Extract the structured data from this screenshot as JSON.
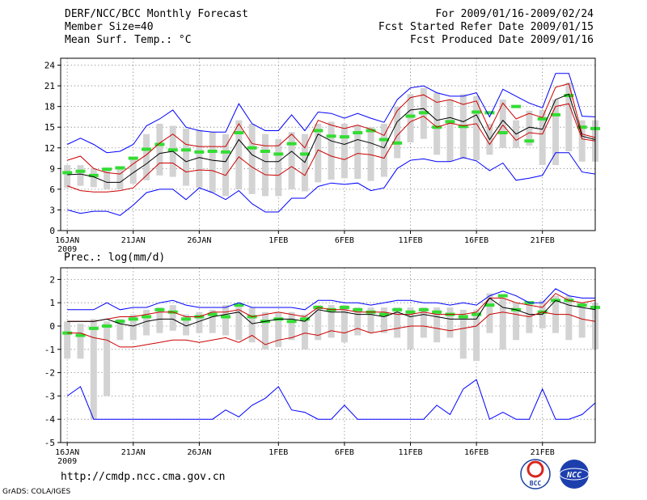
{
  "header": {
    "title": "DERF/NCC/BCC Monthly Forecast",
    "member": "Member Size=40",
    "variable": "Mean Surf. Temp.: °C",
    "period": "For 2009/01/16-2009/02/24",
    "started": "Fcst Started Refer Date 2009/01/15",
    "produced": "Fcst Produced Date 2009/01/16"
  },
  "footer": {
    "url": "http://cmdp.ncc.cma.gov.cn",
    "credit": "GrADS: COLA/IGES"
  },
  "logos": {
    "bcc": "BCC",
    "ncc": "NCC"
  },
  "colors": {
    "envelope": "#0000ff",
    "spread": "#cc0000",
    "mean": "#000000",
    "bar": "#d3d3d3",
    "marker": "#33dd33"
  },
  "chart_data": [
    {
      "type": "line",
      "title": "Mean Surf. Temp.: °C",
      "x_start_label": "16JAN 2009",
      "x_ticks": [
        {
          "day": 1,
          "label": "16JAN",
          "sublabel": "2009"
        },
        {
          "day": 6,
          "label": "21JAN"
        },
        {
          "day": 11,
          "label": "26JAN"
        },
        {
          "day": 17,
          "label": "1FEB"
        },
        {
          "day": 22,
          "label": "6FEB"
        },
        {
          "day": 27,
          "label": "11FEB"
        },
        {
          "day": 32,
          "label": "16FEB"
        },
        {
          "day": 37,
          "label": "21FEB"
        }
      ],
      "xlim": [
        0.5,
        41
      ],
      "ylim": [
        0,
        25
      ],
      "yticks": [
        0,
        3,
        6,
        9,
        12,
        15,
        18,
        21,
        24
      ],
      "series": [
        {
          "name": "max",
          "values": [
            12.5,
            13.4,
            12.5,
            11.3,
            11.5,
            12.5,
            15.2,
            16.2,
            17.5,
            15.0,
            14.5,
            14.3,
            14.3,
            18.4,
            15.5,
            14.5,
            14.5,
            16.8,
            14.5,
            17.2,
            17.0,
            16.3,
            17.0,
            16.3,
            15.7,
            19.0,
            20.7,
            21.0,
            20.0,
            19.5,
            19.5,
            20.0,
            16.5,
            20.5,
            19.5,
            18.5,
            17.8,
            22.8,
            22.8,
            16.6,
            16.5
          ]
        },
        {
          "name": "upper",
          "values": [
            10.2,
            10.8,
            9.0,
            8.4,
            8.2,
            9.7,
            11.0,
            12.7,
            14.0,
            12.5,
            12.2,
            12.2,
            12.2,
            15.5,
            12.6,
            12.3,
            12.3,
            14.0,
            12.0,
            16.0,
            15.3,
            14.8,
            15.3,
            14.7,
            13.8,
            17.4,
            19.3,
            19.7,
            18.6,
            19.0,
            18.3,
            18.8,
            14.6,
            18.5,
            16.2,
            17.0,
            16.4,
            20.8,
            21.3,
            14.0,
            13.5
          ]
        },
        {
          "name": "mean",
          "values": [
            8.1,
            8.2,
            7.8,
            7.0,
            7.0,
            8.4,
            9.7,
            11.2,
            11.5,
            10.0,
            10.6,
            10.2,
            10.0,
            13.2,
            11.0,
            10.0,
            10.0,
            11.5,
            9.9,
            14.0,
            13.0,
            12.5,
            13.2,
            12.7,
            12.0,
            15.8,
            17.5,
            17.7,
            16.0,
            16.4,
            15.8,
            16.8,
            13.2,
            16.0,
            14.0,
            15.0,
            14.7,
            19.0,
            19.8,
            13.7,
            13.2
          ]
        },
        {
          "name": "lower",
          "values": [
            6.5,
            5.8,
            5.6,
            5.6,
            5.8,
            6.2,
            8.0,
            9.8,
            9.8,
            8.5,
            8.8,
            8.7,
            8.0,
            10.7,
            9.2,
            8.1,
            8.0,
            9.3,
            8.0,
            11.7,
            10.8,
            10.3,
            11.2,
            11.0,
            10.5,
            13.8,
            15.8,
            16.6,
            15.0,
            15.6,
            15.2,
            15.5,
            12.5,
            15.3,
            13.1,
            14.2,
            14.0,
            18.0,
            18.4,
            13.3,
            13.0
          ]
        },
        {
          "name": "min",
          "values": [
            3.0,
            2.5,
            2.8,
            2.8,
            2.2,
            3.7,
            5.5,
            6.0,
            6.0,
            4.5,
            6.2,
            5.5,
            4.5,
            5.8,
            3.9,
            2.7,
            2.7,
            4.7,
            4.7,
            6.4,
            6.9,
            6.7,
            6.9,
            5.8,
            6.2,
            9.0,
            10.2,
            10.4,
            10.0,
            10.0,
            10.6,
            10.1,
            8.7,
            9.8,
            7.3,
            7.6,
            8.0,
            11.3,
            11.3,
            8.5,
            8.2
          ]
        }
      ],
      "bars": [
        {
          "low": 6.2,
          "high": 9.5
        },
        {
          "low": 6.5,
          "high": 9.5
        },
        {
          "low": 6.3,
          "high": 9.0
        },
        {
          "low": 6.0,
          "high": 8.7
        },
        {
          "low": 6.0,
          "high": 9.3
        },
        {
          "low": 6.8,
          "high": 10.5
        },
        {
          "low": 7.3,
          "high": 14.0
        },
        {
          "low": 8.0,
          "high": 15.5
        },
        {
          "low": 7.8,
          "high": 15.2
        },
        {
          "low": 6.5,
          "high": 14.8
        },
        {
          "low": 6.2,
          "high": 14.6
        },
        {
          "low": 5.5,
          "high": 14.3
        },
        {
          "low": 5.0,
          "high": 14.0
        },
        {
          "low": 6.0,
          "high": 16.0
        },
        {
          "low": 5.3,
          "high": 15.5
        },
        {
          "low": 5.0,
          "high": 14.0
        },
        {
          "low": 5.0,
          "high": 13.3
        },
        {
          "low": 6.0,
          "high": 14.3
        },
        {
          "low": 5.7,
          "high": 14.0
        },
        {
          "low": 7.0,
          "high": 15.5
        },
        {
          "low": 7.4,
          "high": 15.8
        },
        {
          "low": 7.6,
          "high": 15.5
        },
        {
          "low": 7.5,
          "high": 15.3
        },
        {
          "low": 7.2,
          "high": 15.0
        },
        {
          "low": 7.8,
          "high": 15.5
        },
        {
          "low": 10.5,
          "high": 18.0
        },
        {
          "low": 12.8,
          "high": 19.8
        },
        {
          "low": 13.3,
          "high": 20.7
        },
        {
          "low": 11.0,
          "high": 20.0
        },
        {
          "low": 10.0,
          "high": 19.0
        },
        {
          "low": 10.4,
          "high": 19.8
        },
        {
          "low": 10.2,
          "high": 19.5
        },
        {
          "low": 11.0,
          "high": 15.5
        },
        {
          "low": 12.0,
          "high": 19.0
        },
        {
          "low": 12.0,
          "high": 16.0
        },
        {
          "low": 12.3,
          "high": 17.4
        },
        {
          "low": 9.5,
          "high": 17.5
        },
        {
          "low": 9.5,
          "high": 19.0
        },
        {
          "low": 11.5,
          "high": 21.5
        },
        {
          "low": 10.0,
          "high": 16.0
        },
        {
          "low": 10.0,
          "high": 16.0
        }
      ],
      "markers": [
        8.4,
        8.6,
        8.0,
        8.9,
        9.1,
        10.5,
        11.8,
        12.5,
        11.7,
        11.7,
        11.4,
        11.5,
        11.4,
        14.2,
        12.0,
        11.5,
        11.1,
        12.6,
        11.1,
        14.5,
        13.7,
        13.6,
        14.2,
        14.5,
        13.2,
        12.7,
        16.6,
        17.1,
        15.0,
        15.8,
        15.1,
        17.2,
        17.1,
        14.2,
        18.0,
        13.0,
        16.2,
        16.8,
        19.6,
        15.0,
        14.8
      ]
    },
    {
      "type": "line",
      "title": "Prec.: log(mm/d)",
      "x_ticks": [
        {
          "day": 1,
          "label": "16JAN",
          "sublabel": "2009"
        },
        {
          "day": 6,
          "label": "21JAN"
        },
        {
          "day": 11,
          "label": "26JAN"
        },
        {
          "day": 17,
          "label": "1FEB"
        },
        {
          "day": 22,
          "label": "6FEB"
        },
        {
          "day": 27,
          "label": "11FEB"
        },
        {
          "day": 32,
          "label": "16FEB"
        },
        {
          "day": 37,
          "label": "21FEB"
        }
      ],
      "xlim": [
        0.5,
        41
      ],
      "ylim": [
        -5,
        2.5
      ],
      "yticks": [
        -5,
        -4,
        -3,
        -2,
        -1,
        0,
        1,
        2
      ],
      "series": [
        {
          "name": "max",
          "values": [
            0.7,
            0.7,
            0.7,
            1.0,
            0.7,
            0.8,
            0.8,
            1.0,
            1.1,
            0.9,
            0.8,
            0.8,
            0.8,
            1.0,
            0.8,
            0.8,
            0.8,
            0.8,
            0.7,
            1.1,
            1.1,
            1.0,
            1.0,
            0.9,
            1.0,
            1.1,
            1.1,
            1.0,
            1.0,
            0.9,
            1.0,
            0.9,
            1.3,
            1.5,
            1.3,
            1.0,
            1.0,
            1.6,
            1.3,
            1.2,
            1.2
          ]
        },
        {
          "name": "upper",
          "values": [
            0.2,
            0.2,
            0.2,
            0.3,
            0.4,
            0.4,
            0.5,
            0.6,
            0.6,
            0.4,
            0.4,
            0.6,
            0.6,
            0.7,
            0.4,
            0.5,
            0.6,
            0.5,
            0.4,
            0.8,
            0.7,
            0.7,
            0.6,
            0.6,
            0.6,
            0.5,
            0.5,
            0.6,
            0.5,
            0.5,
            0.5,
            0.6,
            1.2,
            1.2,
            1.0,
            0.9,
            0.8,
            1.4,
            1.1,
            1.0,
            1.1
          ]
        },
        {
          "name": "mean",
          "values": [
            0.2,
            0.2,
            0.2,
            0.3,
            0.1,
            0.0,
            0.2,
            0.3,
            0.3,
            0.0,
            0.2,
            0.4,
            0.5,
            0.6,
            0.1,
            0.2,
            0.3,
            0.3,
            0.2,
            0.7,
            0.6,
            0.6,
            0.5,
            0.5,
            0.4,
            0.6,
            0.4,
            0.5,
            0.4,
            0.3,
            0.3,
            0.3,
            1.2,
            0.8,
            0.7,
            0.5,
            0.5,
            1.1,
            0.9,
            0.8,
            0.7
          ]
        },
        {
          "name": "lower",
          "values": [
            -0.3,
            -0.3,
            -0.5,
            -0.6,
            -0.9,
            -0.9,
            -0.8,
            -0.7,
            -0.6,
            -0.6,
            -0.7,
            -0.6,
            -0.5,
            -0.7,
            -0.4,
            -0.8,
            -0.6,
            -0.5,
            -0.3,
            -0.4,
            -0.2,
            -0.3,
            -0.1,
            -0.3,
            -0.2,
            -0.1,
            0.0,
            0.0,
            -0.1,
            -0.2,
            -0.1,
            0.0,
            0.5,
            0.6,
            0.5,
            0.4,
            0.6,
            0.5,
            0.5,
            0.3,
            0.2
          ]
        },
        {
          "name": "min",
          "values": [
            -3.0,
            -2.6,
            -4.0,
            -4.0,
            -4.0,
            -4.0,
            -4.0,
            -4.0,
            -4.0,
            -4.0,
            -4.0,
            -4.0,
            -3.6,
            -3.9,
            -3.4,
            -3.1,
            -2.6,
            -3.6,
            -3.7,
            -4.0,
            -4.0,
            -3.4,
            -4.0,
            -4.0,
            -4.0,
            -4.0,
            -4.0,
            -4.0,
            -3.4,
            -3.8,
            -2.7,
            -2.3,
            -4.0,
            -3.7,
            -4.0,
            -4.0,
            -2.7,
            -4.0,
            -4.0,
            -3.8,
            -3.3
          ]
        }
      ],
      "bars": [
        {
          "low": -1.4,
          "high": 0.2
        },
        {
          "low": -1.4,
          "high": 0.1
        },
        {
          "low": -4.0,
          "high": 0.3
        },
        {
          "low": -3.0,
          "high": 0.2
        },
        {
          "low": -0.6,
          "high": 0.3
        },
        {
          "low": -0.6,
          "high": 0.5
        },
        {
          "low": -0.4,
          "high": 0.7
        },
        {
          "low": -0.3,
          "high": 0.8
        },
        {
          "low": -0.2,
          "high": 0.9
        },
        {
          "low": -0.4,
          "high": 0.5
        },
        {
          "low": -0.3,
          "high": 0.6
        },
        {
          "low": -0.3,
          "high": 0.7
        },
        {
          "low": -0.4,
          "high": 0.9
        },
        {
          "low": -0.6,
          "high": 0.9
        },
        {
          "low": -0.7,
          "high": 0.8
        },
        {
          "low": -1.0,
          "high": 0.6
        },
        {
          "low": -0.9,
          "high": 0.6
        },
        {
          "low": -0.6,
          "high": 0.6
        },
        {
          "low": -1.0,
          "high": 0.5
        },
        {
          "low": -0.6,
          "high": 0.9
        },
        {
          "low": -0.5,
          "high": 0.9
        },
        {
          "low": -0.7,
          "high": 0.9
        },
        {
          "low": -0.4,
          "high": 0.8
        },
        {
          "low": -0.3,
          "high": 0.8
        },
        {
          "low": -0.3,
          "high": 0.8
        },
        {
          "low": -0.5,
          "high": 0.8
        },
        {
          "low": -1.0,
          "high": 0.8
        },
        {
          "low": -0.5,
          "high": 0.8
        },
        {
          "low": -0.7,
          "high": 0.8
        },
        {
          "low": -0.5,
          "high": 0.8
        },
        {
          "low": -1.4,
          "high": 0.7
        },
        {
          "low": -1.5,
          "high": 0.7
        },
        {
          "low": -0.3,
          "high": 1.4
        },
        {
          "low": -1.0,
          "high": 1.2
        },
        {
          "low": -0.6,
          "high": 1.0
        },
        {
          "low": -0.3,
          "high": 1.0
        },
        {
          "low": -0.1,
          "high": 1.1
        },
        {
          "low": -0.3,
          "high": 1.3
        },
        {
          "low": -0.6,
          "high": 1.3
        },
        {
          "low": -0.5,
          "high": 1.0
        },
        {
          "low": -1.0,
          "high": 1.0
        }
      ],
      "markers": [
        -0.3,
        -0.4,
        -0.1,
        0.0,
        0.2,
        0.3,
        0.4,
        0.7,
        0.6,
        0.3,
        0.4,
        0.5,
        0.4,
        0.9,
        0.4,
        0.2,
        0.3,
        0.2,
        0.3,
        0.8,
        0.7,
        0.8,
        0.7,
        0.6,
        0.5,
        0.7,
        0.6,
        0.7,
        0.6,
        0.5,
        0.4,
        0.5,
        0.9,
        1.3,
        0.7,
        1.0,
        0.6,
        1.1,
        1.1,
        0.9,
        0.8
      ]
    }
  ]
}
